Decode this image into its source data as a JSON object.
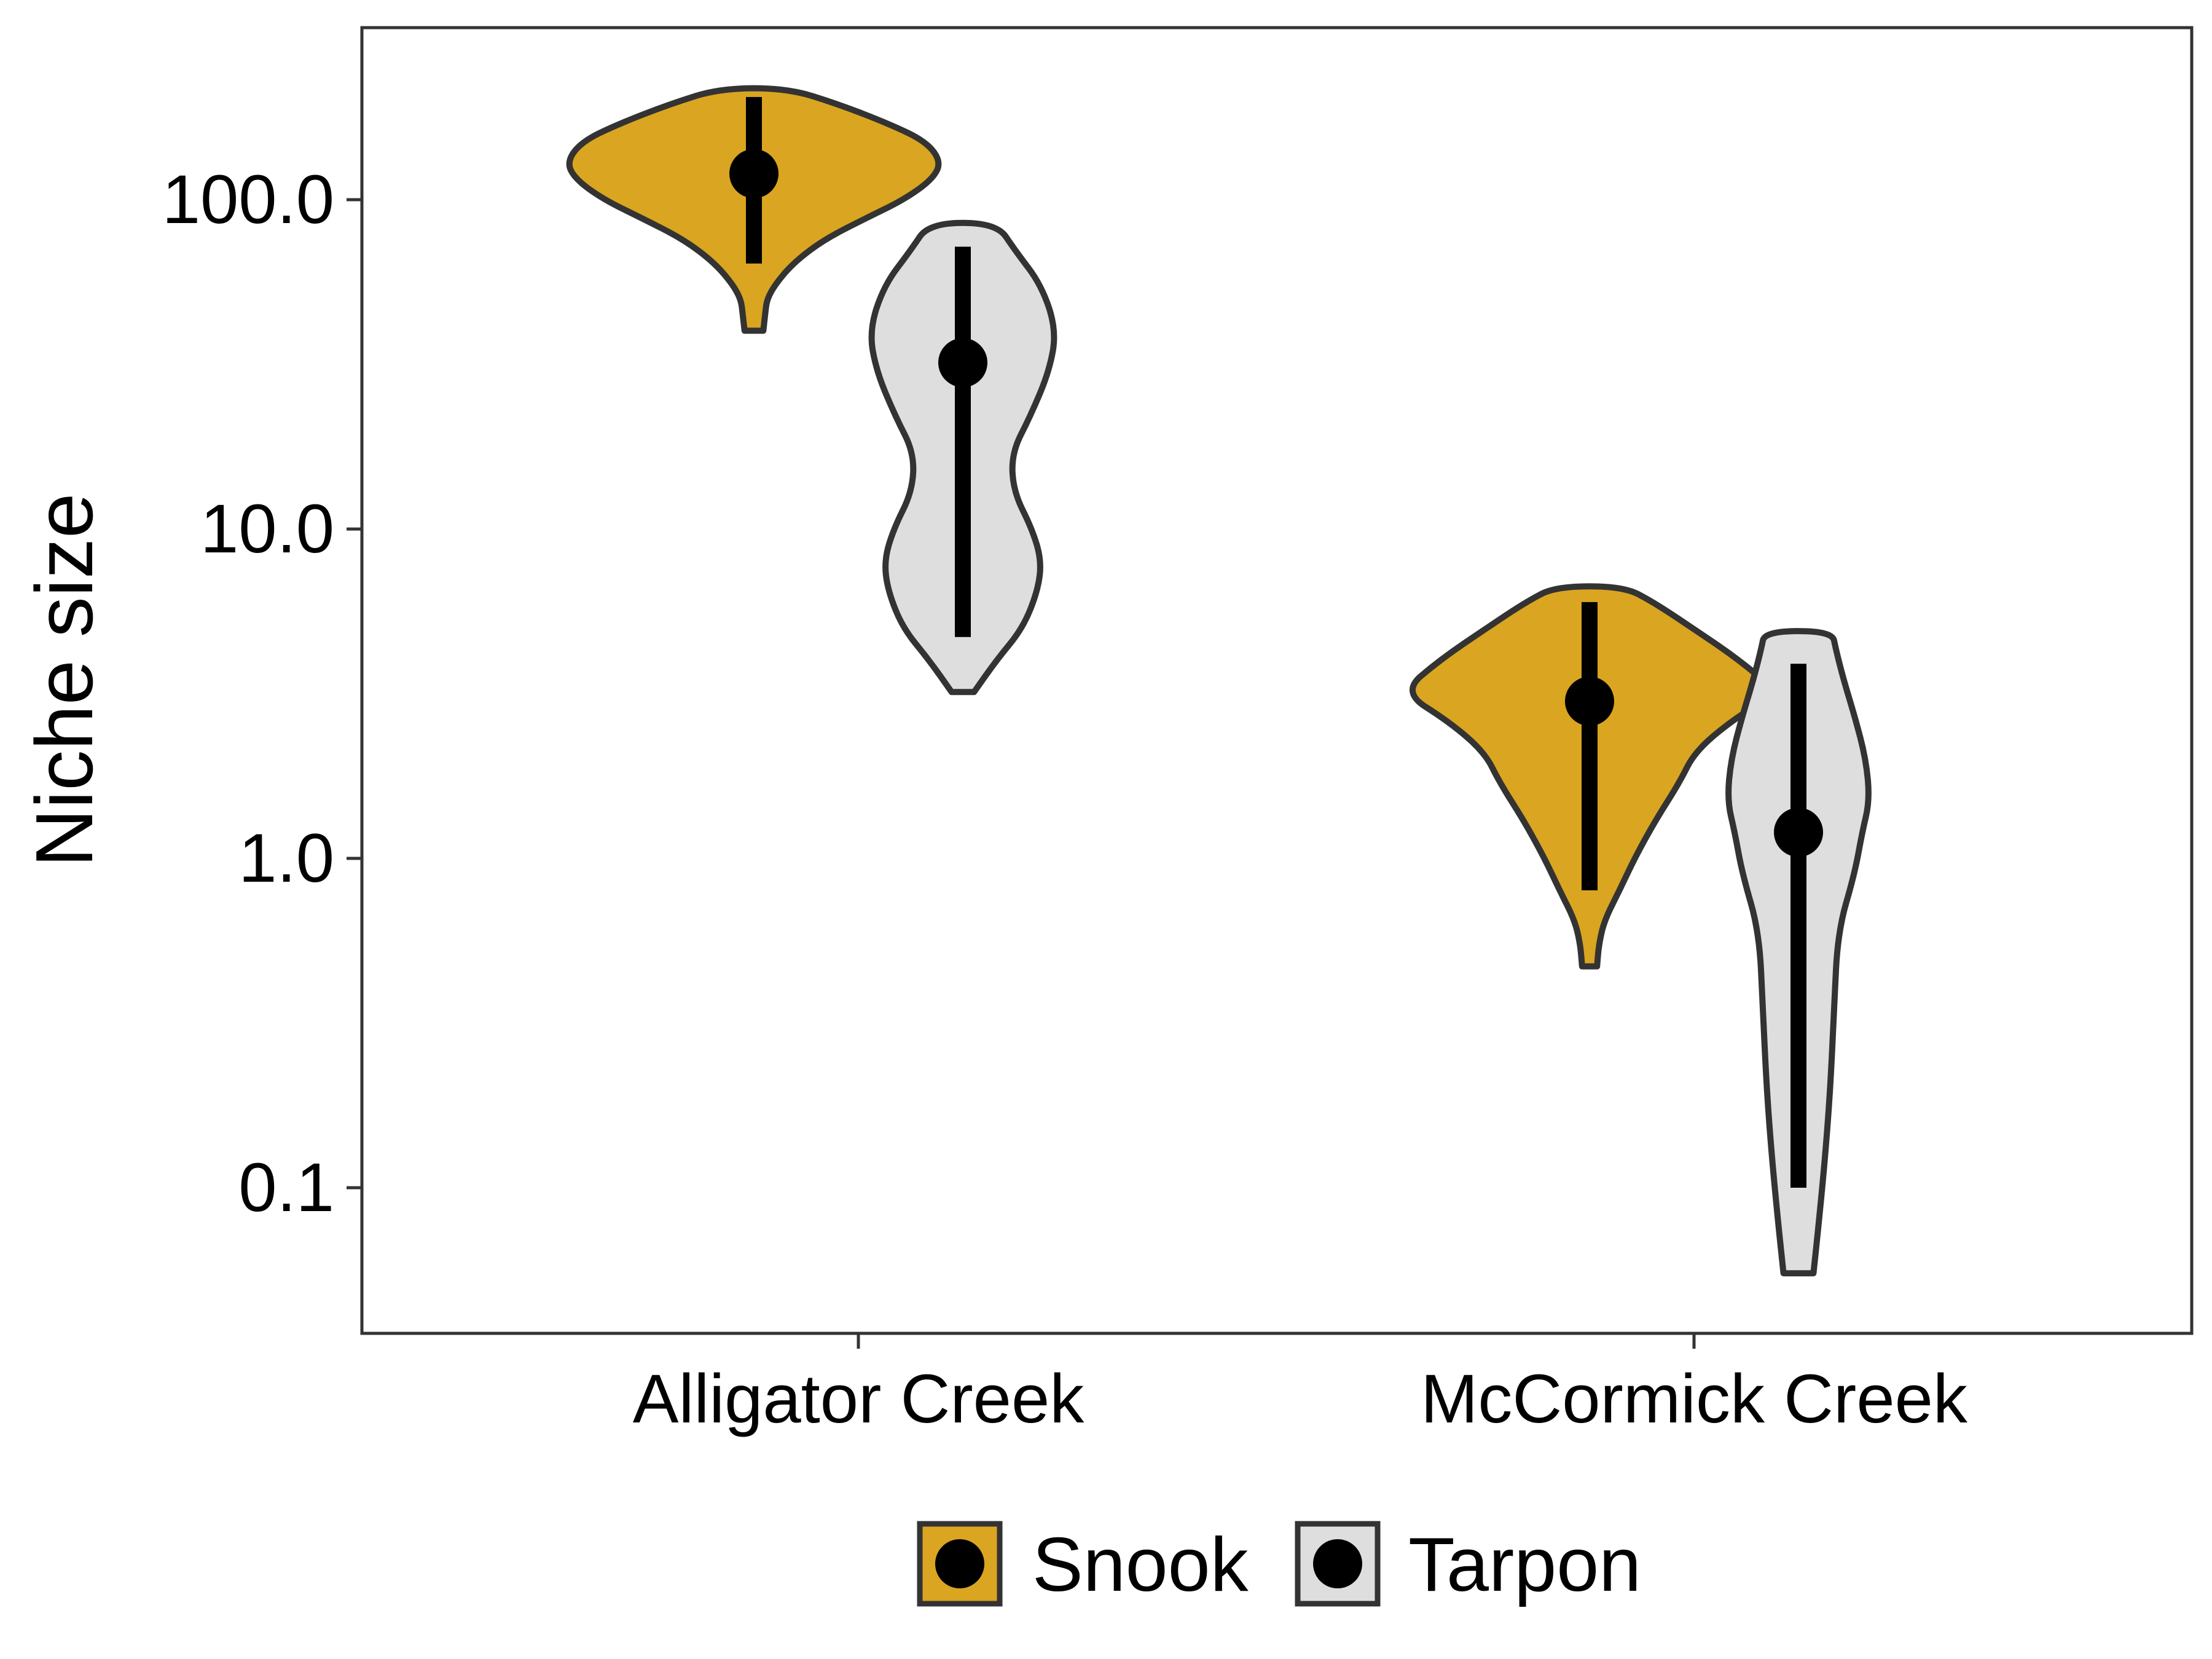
{
  "chart_data": {
    "type": "violin",
    "title": "",
    "xlabel": "",
    "ylabel": "Niche size",
    "y_scale": "log10",
    "ylim": [
      0.035,
      320
    ],
    "y_ticks": [
      {
        "value": 0.1,
        "label": "0.1"
      },
      {
        "value": 1,
        "label": "1.0"
      },
      {
        "value": 10,
        "label": "10.0"
      },
      {
        "value": 100,
        "label": "100.0"
      }
    ],
    "categories": [
      "Alligator Creek",
      "McCormick Creek"
    ],
    "grid": false,
    "legend": {
      "placement": "bottom",
      "entries": [
        {
          "label": "Snook",
          "color": "#DAA520"
        },
        {
          "label": "Tarpon",
          "color": "#DEDEDE"
        }
      ]
    },
    "series": [
      {
        "name": "Snook",
        "color": "#DAA520",
        "points": [
          {
            "category": "Alligator Creek",
            "median": 120,
            "low": 64,
            "high": 205,
            "density": [
              {
                "y": 40,
                "w": 0.05
              },
              {
                "y": 45,
                "w": 0.06
              },
              {
                "y": 50,
                "w": 0.07
              },
              {
                "y": 56,
                "w": 0.12
              },
              {
                "y": 65,
                "w": 0.22
              },
              {
                "y": 76,
                "w": 0.38
              },
              {
                "y": 88,
                "w": 0.6
              },
              {
                "y": 100,
                "w": 0.8
              },
              {
                "y": 115,
                "w": 0.95
              },
              {
                "y": 130,
                "w": 1.0
              },
              {
                "y": 150,
                "w": 0.92
              },
              {
                "y": 170,
                "w": 0.72
              },
              {
                "y": 195,
                "w": 0.45
              },
              {
                "y": 218,
                "w": 0.18
              }
            ]
          },
          {
            "category": "McCormick Creek",
            "median": 3.0,
            "low": 0.8,
            "high": 6.0,
            "density": [
              {
                "y": 0.47,
                "w": 0.04
              },
              {
                "y": 0.55,
                "w": 0.05
              },
              {
                "y": 0.65,
                "w": 0.08
              },
              {
                "y": 0.8,
                "w": 0.16
              },
              {
                "y": 1.0,
                "w": 0.24
              },
              {
                "y": 1.3,
                "w": 0.35
              },
              {
                "y": 1.7,
                "w": 0.48
              },
              {
                "y": 2.1,
                "w": 0.56
              },
              {
                "y": 2.6,
                "w": 0.75
              },
              {
                "y": 3.2,
                "w": 1.0
              },
              {
                "y": 4.0,
                "w": 0.8
              },
              {
                "y": 5.0,
                "w": 0.55
              },
              {
                "y": 6.0,
                "w": 0.34
              },
              {
                "y": 6.7,
                "w": 0.18
              }
            ]
          }
        ]
      },
      {
        "name": "Tarpon",
        "color": "#DEDEDE",
        "points": [
          {
            "category": "Alligator Creek",
            "median": 32,
            "low": 4.7,
            "high": 72,
            "density": [
              {
                "y": 3.2,
                "w": 0.06
              },
              {
                "y": 4,
                "w": 0.18
              },
              {
                "y": 5,
                "w": 0.32
              },
              {
                "y": 6.5,
                "w": 0.4
              },
              {
                "y": 8,
                "w": 0.42
              },
              {
                "y": 10,
                "w": 0.37
              },
              {
                "y": 13,
                "w": 0.27
              },
              {
                "y": 17,
                "w": 0.26
              },
              {
                "y": 22,
                "w": 0.36
              },
              {
                "y": 30,
                "w": 0.46
              },
              {
                "y": 40,
                "w": 0.5
              },
              {
                "y": 55,
                "w": 0.42
              },
              {
                "y": 70,
                "w": 0.28
              },
              {
                "y": 85,
                "w": 0.18
              }
            ]
          },
          {
            "category": "McCormick Creek",
            "median": 1.2,
            "low": 0.1,
            "high": 3.9,
            "density": [
              {
                "y": 0.055,
                "w": 0.08
              },
              {
                "y": 0.08,
                "w": 0.11
              },
              {
                "y": 0.12,
                "w": 0.14
              },
              {
                "y": 0.2,
                "w": 0.17
              },
              {
                "y": 0.35,
                "w": 0.19
              },
              {
                "y": 0.6,
                "w": 0.21
              },
              {
                "y": 0.9,
                "w": 0.3
              },
              {
                "y": 1.2,
                "w": 0.34
              },
              {
                "y": 1.5,
                "w": 0.38
              },
              {
                "y": 2.0,
                "w": 0.36
              },
              {
                "y": 2.7,
                "w": 0.3
              },
              {
                "y": 3.5,
                "w": 0.24
              },
              {
                "y": 4.3,
                "w": 0.2
              },
              {
                "y": 4.9,
                "w": 0.18
              }
            ]
          }
        ]
      }
    ]
  }
}
